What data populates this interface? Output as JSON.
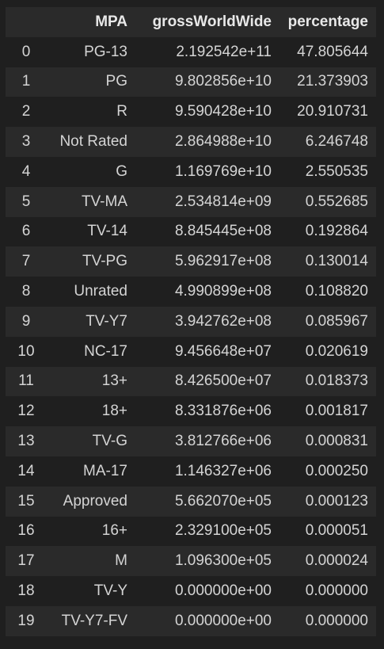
{
  "columns": {
    "index": "",
    "mpa": "MPA",
    "gross": "grossWorldWide",
    "percentage": "percentage"
  },
  "rows": [
    {
      "index": "0",
      "mpa": "PG-13",
      "gross": "2.192542e+11",
      "percentage": "47.805644"
    },
    {
      "index": "1",
      "mpa": "PG",
      "gross": "9.802856e+10",
      "percentage": "21.373903"
    },
    {
      "index": "2",
      "mpa": "R",
      "gross": "9.590428e+10",
      "percentage": "20.910731"
    },
    {
      "index": "3",
      "mpa": "Not Rated",
      "gross": "2.864988e+10",
      "percentage": "6.246748"
    },
    {
      "index": "4",
      "mpa": "G",
      "gross": "1.169769e+10",
      "percentage": "2.550535"
    },
    {
      "index": "5",
      "mpa": "TV-MA",
      "gross": "2.534814e+09",
      "percentage": "0.552685"
    },
    {
      "index": "6",
      "mpa": "TV-14",
      "gross": "8.845445e+08",
      "percentage": "0.192864"
    },
    {
      "index": "7",
      "mpa": "TV-PG",
      "gross": "5.962917e+08",
      "percentage": "0.130014"
    },
    {
      "index": "8",
      "mpa": "Unrated",
      "gross": "4.990899e+08",
      "percentage": "0.108820"
    },
    {
      "index": "9",
      "mpa": "TV-Y7",
      "gross": "3.942762e+08",
      "percentage": "0.085967"
    },
    {
      "index": "10",
      "mpa": "NC-17",
      "gross": "9.456648e+07",
      "percentage": "0.020619"
    },
    {
      "index": "11",
      "mpa": "13+",
      "gross": "8.426500e+07",
      "percentage": "0.018373"
    },
    {
      "index": "12",
      "mpa": "18+",
      "gross": "8.331876e+06",
      "percentage": "0.001817"
    },
    {
      "index": "13",
      "mpa": "TV-G",
      "gross": "3.812766e+06",
      "percentage": "0.000831"
    },
    {
      "index": "14",
      "mpa": "MA-17",
      "gross": "1.146327e+06",
      "percentage": "0.000250"
    },
    {
      "index": "15",
      "mpa": "Approved",
      "gross": "5.662070e+05",
      "percentage": "0.000123"
    },
    {
      "index": "16",
      "mpa": "16+",
      "gross": "2.329100e+05",
      "percentage": "0.000051"
    },
    {
      "index": "17",
      "mpa": "M",
      "gross": "1.096300e+05",
      "percentage": "0.000024"
    },
    {
      "index": "18",
      "mpa": "TV-Y",
      "gross": "0.000000e+00",
      "percentage": "0.000000"
    },
    {
      "index": "19",
      "mpa": "TV-Y7-FV",
      "gross": "0.000000e+00",
      "percentage": "0.000000"
    }
  ],
  "colors": {
    "background": "#1f1f1f",
    "stripe": "#2a2a2a",
    "text": "#d4d4d4"
  }
}
